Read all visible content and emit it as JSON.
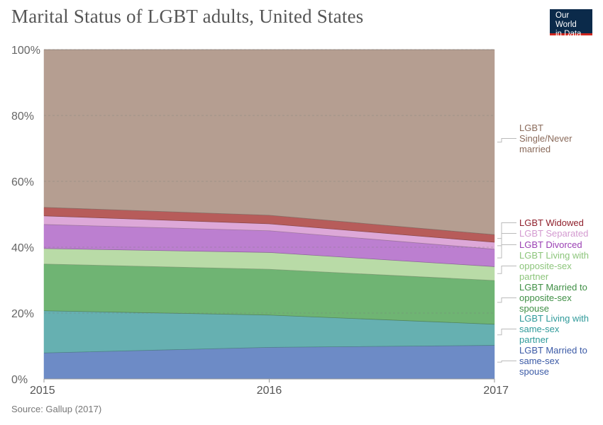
{
  "title": "Marital Status of LGBT adults, United States",
  "logo_text": [
    "Our World",
    "in Data"
  ],
  "source": "Source: Gallup (2017)",
  "chart_data": {
    "type": "area",
    "stacked": true,
    "x": [
      2015,
      2016,
      2017
    ],
    "x_tick_labels": [
      "2015",
      "2016",
      "2017"
    ],
    "y_tick_labels": [
      "0%",
      "20%",
      "40%",
      "60%",
      "80%",
      "100%"
    ],
    "ylim": [
      0,
      100
    ],
    "grid": "horizontal dashed",
    "legend_placement": "right",
    "series": [
      {
        "name": "LGBT Married to same-sex spouse",
        "label_lines": [
          "LGBT Married to",
          "same-sex",
          "spouse"
        ],
        "values": [
          7.9,
          9.6,
          10.2
        ],
        "color": "#6d8bc6",
        "text_color": "#3b5aa6"
      },
      {
        "name": "LGBT Living with same-sex partner",
        "label_lines": [
          "LGBT Living with",
          "same-sex",
          "partner"
        ],
        "values": [
          12.8,
          9.8,
          6.4
        ],
        "color": "#66b0b1",
        "text_color": "#2f9a9a"
      },
      {
        "name": "LGBT Married to opposite-sex spouse",
        "label_lines": [
          "LGBT Married to",
          "opposite-sex",
          "spouse"
        ],
        "values": [
          14.2,
          13.9,
          13.3
        ],
        "color": "#6fb473",
        "text_color": "#3f8f45"
      },
      {
        "name": "LGBT Living with opposite-sex partner",
        "label_lines": [
          "LGBT Living with",
          "opposite-sex",
          "partner"
        ],
        "values": [
          4.7,
          5.1,
          4.2
        ],
        "color": "#b9dba7",
        "text_color": "#8cc57b"
      },
      {
        "name": "LGBT Divorced",
        "label_lines": [
          "LGBT Divorced"
        ],
        "values": [
          7.3,
          6.6,
          5.3
        ],
        "color": "#bc7fd0",
        "text_color": "#9a3fb3"
      },
      {
        "name": "LGBT Separated",
        "label_lines": [
          "LGBT Separated"
        ],
        "values": [
          2.6,
          2.1,
          2.1
        ],
        "color": "#dda8d8",
        "text_color": "#d39ad0"
      },
      {
        "name": "LGBT Widowed",
        "label_lines": [
          "LGBT Widowed"
        ],
        "values": [
          2.6,
          2.6,
          2.3
        ],
        "color": "#b75c5a",
        "text_color": "#8f1f2b"
      },
      {
        "name": "LGBT Single/Never married",
        "label_lines": [
          "LGBT",
          "Single/Never",
          "married"
        ],
        "values": [
          47.9,
          50.3,
          56.2
        ],
        "color": "#b59e91",
        "text_color": "#8a6a5a"
      }
    ]
  }
}
